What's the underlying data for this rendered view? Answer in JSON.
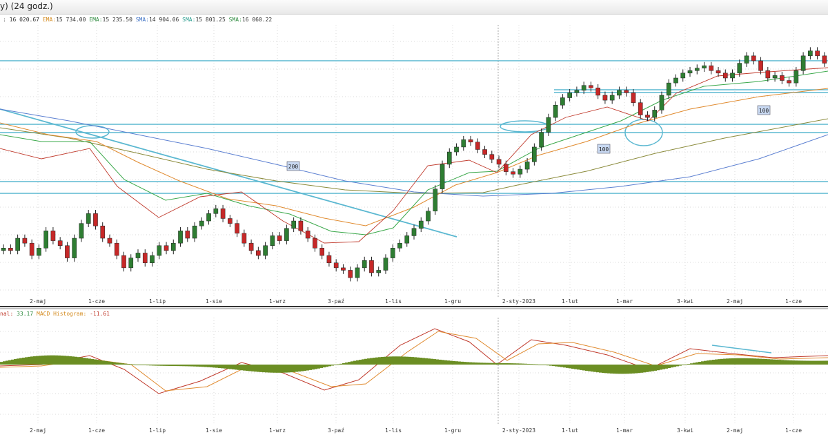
{
  "window": {
    "title": "y) (24 godz.)"
  },
  "indicators": {
    "close_value": ": 16 020.67",
    "ema1_label": "EMA:",
    "ema1_value": "15 734.00",
    "ema2_label": "EMA:",
    "ema2_value": "15 235.50",
    "sma1_label": "SMA:",
    "sma1_value": "14 904.06",
    "sma2_label": "SMA:",
    "sma2_value": "15 801.25",
    "sma3_label": "SMA:",
    "sma3_value": "16 060.22"
  },
  "macd": {
    "signal_label": "nal:",
    "signal_value": "33.17",
    "hist_label": "MACD Histogram:",
    "hist_value": "-11.61"
  },
  "colors": {
    "candle_up": "#2e7d32",
    "candle_down": "#c62828",
    "level_line": "#5bb8d1",
    "trend_line": "#5bb8d1",
    "sma200": "#5b7fd1",
    "sma100": "#8a8a3a",
    "ema_orange": "#e08a2e",
    "ema_green": "#3aa84a",
    "ema_red": "#c0392b",
    "macd_hist": "#6b8e23",
    "macd_line": "#c0392b",
    "signal_line": "#e08a2e",
    "grid": "#d8d8d8"
  },
  "chart_data": [
    {
      "type": "candlestick",
      "title": "",
      "x_ticks": [
        "2-maj",
        "1-cze",
        "1-lip",
        "1-sie",
        "1-wrz",
        "3-paź",
        "1-lis",
        "1-gru",
        "2-sty-2023",
        "1-lut",
        "1-mar",
        "3-kwi",
        "2-maj",
        "1-cze"
      ],
      "annotations": [
        "200",
        "100",
        "100"
      ],
      "grid": true,
      "series": [
        {
          "name": "close",
          "values": [
            17,
            16,
            21,
            19,
            14,
            17,
            24,
            20,
            18,
            13,
            21,
            27,
            31,
            26,
            21,
            19,
            14,
            9,
            13,
            15,
            11,
            14,
            18,
            16,
            19,
            24,
            21,
            26,
            28,
            31,
            33,
            29,
            27,
            23,
            19,
            16,
            14,
            18,
            22,
            20,
            25,
            28,
            24,
            21,
            17,
            14,
            11,
            9,
            8,
            5,
            9,
            12,
            7,
            8,
            13,
            17,
            19,
            22,
            25,
            28,
            32,
            41,
            51,
            56,
            58,
            61,
            60,
            57,
            55,
            53,
            51,
            48,
            47,
            49,
            52,
            58,
            64,
            70,
            75,
            78,
            80,
            81,
            83,
            82,
            79,
            77,
            79,
            81,
            80,
            76,
            71,
            70,
            73,
            79,
            84,
            86,
            88,
            89,
            90,
            91,
            89,
            88,
            86,
            88,
            92,
            95,
            93,
            89,
            86,
            87,
            85,
            84,
            89,
            95,
            97,
            95,
            92
          ]
        },
        {
          "name": "EMA fast",
          "values": []
        },
        {
          "name": "EMA slow",
          "values": []
        },
        {
          "name": "SMA 100",
          "values": []
        },
        {
          "name": "SMA 200",
          "values": []
        }
      ]
    },
    {
      "type": "bar",
      "title": "",
      "x_ticks": [
        "2-maj",
        "1-cze",
        "1-lip",
        "1-sie",
        "1-wrz",
        "3-paź",
        "1-lis",
        "1-gru",
        "2-sty-2023",
        "1-lut",
        "1-mar",
        "3-kwi",
        "2-maj",
        "1-cze"
      ],
      "grid": true,
      "series": [
        {
          "name": "MACD Histogram",
          "values": []
        }
      ]
    }
  ]
}
